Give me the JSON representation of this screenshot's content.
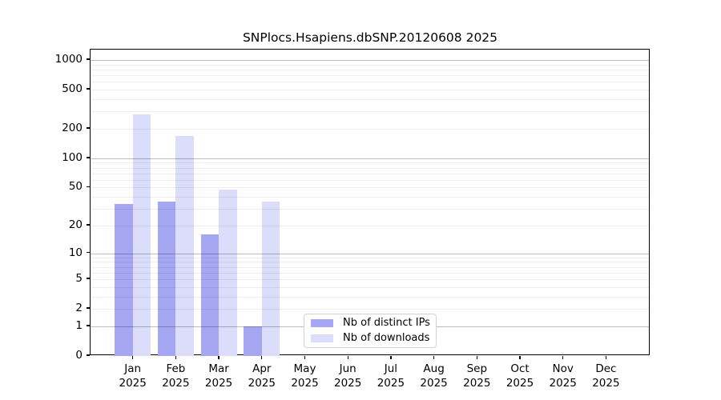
{
  "title": "SNPlocs.Hsapiens.dbSNP.20120608 2025",
  "chart_data": {
    "type": "bar",
    "title": "SNPlocs.Hsapiens.dbSNP.20120608 2025",
    "categories": [
      "Jan",
      "Feb",
      "Mar",
      "Apr",
      "May",
      "Jun",
      "Jul",
      "Aug",
      "Sep",
      "Oct",
      "Nov",
      "Dec"
    ],
    "category_year": "2025",
    "series": [
      {
        "name": "Nb of distinct IPs",
        "color": "#a5a7f3",
        "values": [
          34,
          36,
          16,
          1,
          0,
          0,
          0,
          0,
          0,
          0,
          0,
          0
        ]
      },
      {
        "name": "Nb of downloads",
        "color": "#dbddfb",
        "values": [
          280,
          170,
          48,
          36,
          0,
          0,
          0,
          0,
          0,
          0,
          0,
          0
        ]
      }
    ],
    "yscale": "log1p",
    "yticks": [
      0,
      1,
      2,
      5,
      10,
      20,
      50,
      100,
      200,
      500,
      1000
    ],
    "major_gridlines": [
      1,
      10,
      100,
      1000
    ],
    "minor_gridline_decades": [
      1,
      10,
      100
    ],
    "ylim": [
      0,
      1250
    ],
    "grid": "horizontal",
    "legend_position": "bottom-center",
    "bar_grouping": "paired per month, IPs left / downloads right"
  }
}
